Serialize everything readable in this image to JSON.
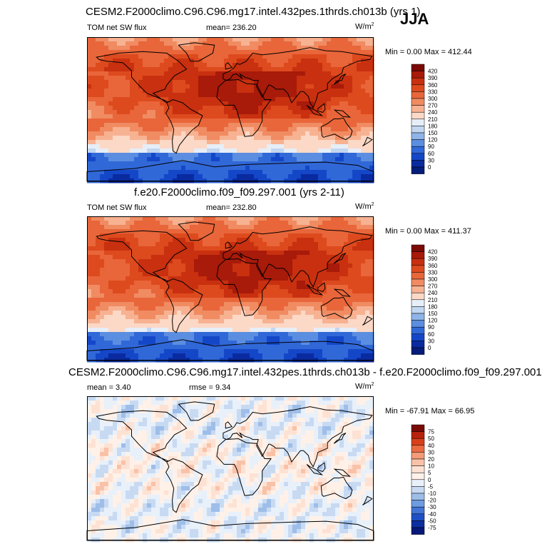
{
  "season": "JJA",
  "units_label": "W/m",
  "units_exp": "2",
  "panels": [
    {
      "title": "CESM2.F2000climo.C96.C96.mg17.intel.432pes.1thrds.ch013b (yrs 1)",
      "left_label": "TOM net SW flux",
      "center_label": "mean= 236.20",
      "minmax": "Min =   0.00 Max = 412.44",
      "cbar_labels": [
        "420",
        "390",
        "360",
        "330",
        "300",
        "270",
        "240",
        "210",
        "180",
        "150",
        "120",
        "90",
        "60",
        "30",
        "0"
      ],
      "cbar_colors": [
        "#7a0a05",
        "#a81a0a",
        "#c8300f",
        "#dd4a1e",
        "#e8663a",
        "#f08b62",
        "#f7b292",
        "#fcd8c6",
        "#e6eef8",
        "#c2d6f0",
        "#8fb4e8",
        "#5b8ee0",
        "#3168d8",
        "#1447c8",
        "#0a2aa0",
        "#061c7a"
      ],
      "kind": "abs"
    },
    {
      "title": "f.e20.F2000climo.f09_f09.297.001 (yrs 2-11)",
      "left_label": "TOM net SW flux",
      "center_label": "mean= 232.80",
      "minmax": "Min =   0.00 Max = 411.37",
      "cbar_labels": [
        "420",
        "390",
        "360",
        "330",
        "300",
        "270",
        "240",
        "210",
        "180",
        "150",
        "120",
        "90",
        "60",
        "30",
        "0"
      ],
      "cbar_colors": [
        "#7a0a05",
        "#a81a0a",
        "#c8300f",
        "#dd4a1e",
        "#e8663a",
        "#f08b62",
        "#f7b292",
        "#fcd8c6",
        "#e6eef8",
        "#c2d6f0",
        "#8fb4e8",
        "#5b8ee0",
        "#3168d8",
        "#1447c8",
        "#0a2aa0",
        "#061c7a"
      ],
      "kind": "abs"
    },
    {
      "title": "CESM2.F2000climo.C96.C96.mg17.intel.432pes.1thrds.ch013b - f.e20.F2000climo.f09_f09.297.001",
      "left_label": "mean =   3.40",
      "center_label": "rmse =   9.34",
      "minmax": "Min = -67.91 Max =  66.95",
      "cbar_labels": [
        "75",
        "50",
        "40",
        "30",
        "20",
        "10",
        "5",
        "0",
        "-5",
        "-10",
        "-20",
        "-30",
        "-40",
        "-50",
        "-75"
      ],
      "cbar_colors": [
        "#7a0a05",
        "#b8220c",
        "#d8401a",
        "#ec6a40",
        "#f49a78",
        "#f9c2a8",
        "#fde2d4",
        "#fff1e8",
        "#e8f0fa",
        "#c8daf2",
        "#9ebee9",
        "#6f9be0",
        "#4374d6",
        "#1f4fc4",
        "#0c2fa0",
        "#06187a"
      ],
      "kind": "diff"
    }
  ],
  "chart_data": [
    {
      "type": "heatmap",
      "title": "CESM2.F2000climo.C96.C96.mg17.intel.432pes.1thrds.ch013b (yrs 1)",
      "variable": "TOM net SW flux",
      "units": "W/m2",
      "mean": 236.2,
      "min": 0.0,
      "max": 412.44,
      "colorbar_levels": [
        0,
        30,
        60,
        90,
        120,
        150,
        180,
        210,
        240,
        270,
        300,
        330,
        360,
        390,
        420
      ],
      "season": "JJA"
    },
    {
      "type": "heatmap",
      "title": "f.e20.F2000climo.f09_f09.297.001 (yrs 2-11)",
      "variable": "TOM net SW flux",
      "units": "W/m2",
      "mean": 232.8,
      "min": 0.0,
      "max": 411.37,
      "colorbar_levels": [
        0,
        30,
        60,
        90,
        120,
        150,
        180,
        210,
        240,
        270,
        300,
        330,
        360,
        390,
        420
      ],
      "season": "JJA"
    },
    {
      "type": "heatmap",
      "title": "CESM2.F2000climo.C96.C96.mg17.intel.432pes.1thrds.ch013b - f.e20.F2000climo.f09_f09.297.001",
      "units": "W/m2",
      "mean": 3.4,
      "rmse": 9.34,
      "min": -67.91,
      "max": 66.95,
      "colorbar_levels": [
        -75,
        -50,
        -40,
        -30,
        -20,
        -10,
        -5,
        0,
        5,
        10,
        20,
        30,
        40,
        50,
        75
      ],
      "season": "JJA"
    }
  ]
}
